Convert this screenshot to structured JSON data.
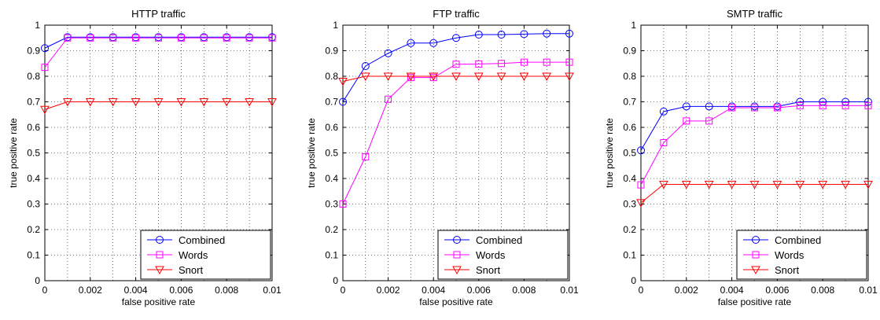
{
  "chart_data": [
    {
      "type": "line",
      "title": "HTTP traffic",
      "xlabel": "false positive rate",
      "ylabel": "true positive rate",
      "xlim": [
        0,
        0.01
      ],
      "ylim": [
        0,
        1
      ],
      "xticks": [
        "0",
        "0.002",
        "0.004",
        "0.006",
        "0.008",
        "0.01"
      ],
      "yticks": [
        "0",
        "0.1",
        "0.2",
        "0.3",
        "0.4",
        "0.5",
        "0.6",
        "0.7",
        "0.8",
        "0.9",
        "1"
      ],
      "grid": true,
      "legend_position": "bottom-right",
      "x": [
        0,
        0.001,
        0.002,
        0.003,
        0.004,
        0.005,
        0.006,
        0.007,
        0.008,
        0.009,
        0.01
      ],
      "series": [
        {
          "name": "Combined",
          "color": "#0000ff",
          "marker": "circle",
          "values": [
            0.91,
            0.953,
            0.953,
            0.953,
            0.953,
            0.953,
            0.953,
            0.953,
            0.953,
            0.953,
            0.953
          ]
        },
        {
          "name": "Words",
          "color": "#ff00ff",
          "marker": "square",
          "values": [
            0.835,
            0.95,
            0.95,
            0.95,
            0.95,
            0.95,
            0.95,
            0.95,
            0.95,
            0.95,
            0.95
          ]
        },
        {
          "name": "Snort",
          "color": "#ff0000",
          "marker": "triangle-down",
          "values": [
            0.67,
            0.7,
            0.7,
            0.7,
            0.7,
            0.7,
            0.7,
            0.7,
            0.7,
            0.7,
            0.7
          ]
        }
      ]
    },
    {
      "type": "line",
      "title": "FTP traffic",
      "xlabel": "false positive rate",
      "ylabel": "true positive rate",
      "xlim": [
        0,
        0.01
      ],
      "ylim": [
        0,
        1
      ],
      "xticks": [
        "0",
        "0.002",
        "0.004",
        "0.006",
        "0.008",
        "0.01"
      ],
      "yticks": [
        "0",
        "0.1",
        "0.2",
        "0.3",
        "0.4",
        "0.5",
        "0.6",
        "0.7",
        "0.8",
        "0.9",
        "1"
      ],
      "grid": true,
      "legend_position": "bottom-right",
      "x": [
        0,
        0.001,
        0.002,
        0.003,
        0.004,
        0.005,
        0.006,
        0.007,
        0.008,
        0.009,
        0.01
      ],
      "series": [
        {
          "name": "Combined",
          "color": "#0000ff",
          "marker": "circle",
          "values": [
            0.7,
            0.84,
            0.89,
            0.93,
            0.93,
            0.95,
            0.963,
            0.963,
            0.965,
            0.967,
            0.967
          ]
        },
        {
          "name": "Words",
          "color": "#ff00ff",
          "marker": "square",
          "values": [
            0.3,
            0.485,
            0.71,
            0.795,
            0.795,
            0.847,
            0.848,
            0.85,
            0.855,
            0.855,
            0.855
          ]
        },
        {
          "name": "Snort",
          "color": "#ff0000",
          "marker": "triangle-down",
          "values": [
            0.78,
            0.8,
            0.8,
            0.8,
            0.8,
            0.8,
            0.8,
            0.8,
            0.8,
            0.8,
            0.8
          ]
        }
      ]
    },
    {
      "type": "line",
      "title": "SMTP traffic",
      "xlabel": "false positive rate",
      "ylabel": "true positive rate",
      "xlim": [
        0,
        0.01
      ],
      "ylim": [
        0,
        1
      ],
      "xticks": [
        "0",
        "0.002",
        "0.004",
        "0.006",
        "0.008",
        "0.01"
      ],
      "yticks": [
        "0",
        "0.1",
        "0.2",
        "0.3",
        "0.4",
        "0.5",
        "0.6",
        "0.7",
        "0.8",
        "0.9",
        "1"
      ],
      "grid": true,
      "legend_position": "bottom-right",
      "x": [
        0,
        0.001,
        0.002,
        0.003,
        0.004,
        0.005,
        0.006,
        0.007,
        0.008,
        0.009,
        0.01
      ],
      "series": [
        {
          "name": "Combined",
          "color": "#0000ff",
          "marker": "circle",
          "values": [
            0.51,
            0.662,
            0.682,
            0.682,
            0.682,
            0.682,
            0.682,
            0.7,
            0.7,
            0.7,
            0.7
          ]
        },
        {
          "name": "Words",
          "color": "#ff00ff",
          "marker": "square",
          "values": [
            0.375,
            0.54,
            0.625,
            0.625,
            0.677,
            0.677,
            0.677,
            0.685,
            0.685,
            0.685,
            0.685
          ]
        },
        {
          "name": "Snort",
          "color": "#ff0000",
          "marker": "triangle-down",
          "values": [
            0.305,
            0.377,
            0.377,
            0.377,
            0.377,
            0.377,
            0.377,
            0.377,
            0.377,
            0.377,
            0.377
          ]
        }
      ]
    }
  ]
}
